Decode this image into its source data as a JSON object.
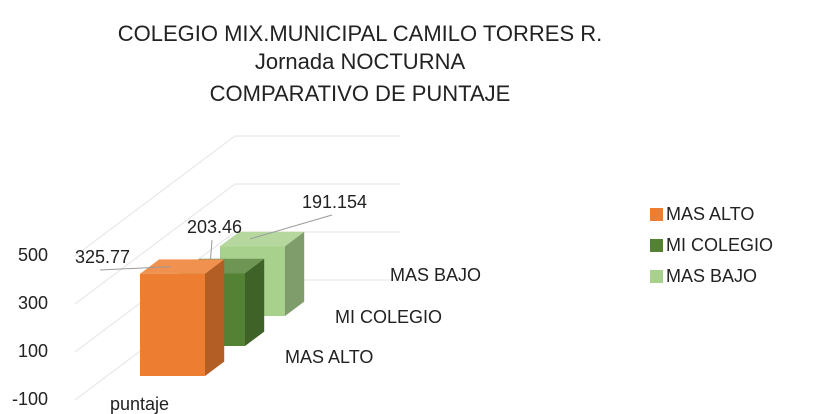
{
  "chart_data": {
    "type": "bar",
    "title": [
      "COLEGIO MIX.MUNICIPAL CAMILO TORRES R.",
      "Jornada NOCTURNA",
      "COMPARATIVO DE PUNTAJE"
    ],
    "categories": [
      "puntaje"
    ],
    "series": [
      {
        "name": "MAS ALTO",
        "color": "#ed7d31",
        "values": [
          325.77
        ]
      },
      {
        "name": "MI COLEGIO",
        "color": "#548235",
        "values": [
          203.46
        ]
      },
      {
        "name": "MAS BAJO",
        "color": "#a9d18e",
        "values": [
          191.154
        ]
      }
    ],
    "ylim": [
      -100,
      500
    ],
    "yticks": [
      -100,
      100,
      300,
      500
    ],
    "grid": true,
    "legend": "right"
  }
}
